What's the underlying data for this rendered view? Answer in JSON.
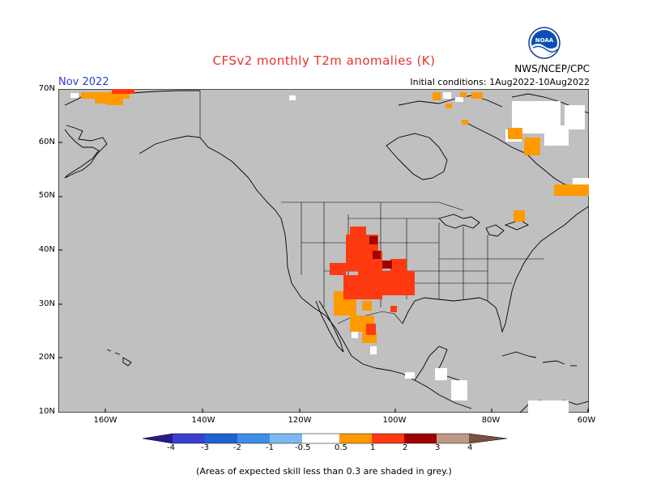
{
  "header": {
    "title": "CFSv2 monthly T2m anomalies (K)",
    "month": "Nov 2022",
    "agency": "NWS/NCEP/CPC",
    "initial_conditions": "Initial conditions: 1Aug2022-10Aug2022",
    "logo_text": "NOAA"
  },
  "map": {
    "background_color": "#c0c0c0",
    "y_labels": [
      "70N",
      "60N",
      "50N",
      "40N",
      "30N",
      "20N",
      "10N"
    ],
    "x_labels": [
      "160W",
      "140W",
      "120W",
      "100W",
      "80W",
      "60W"
    ]
  },
  "colorbar": {
    "labels": [
      "-4",
      "-3",
      "-2",
      "-1",
      "-0.5",
      "0.5",
      "1",
      "2",
      "3",
      "4"
    ],
    "colors": [
      "#2a1a8f",
      "#3a3fcf",
      "#1f63d0",
      "#3d8fe8",
      "#7db8f2",
      "#ffffff",
      "#ff9a00",
      "#ff5a10",
      "#dd2000",
      "#a00000",
      "#c09888",
      "#7a5040"
    ]
  },
  "footer": {
    "note": "(Areas of expected skill less than 0.3 are shaded in grey.)"
  }
}
